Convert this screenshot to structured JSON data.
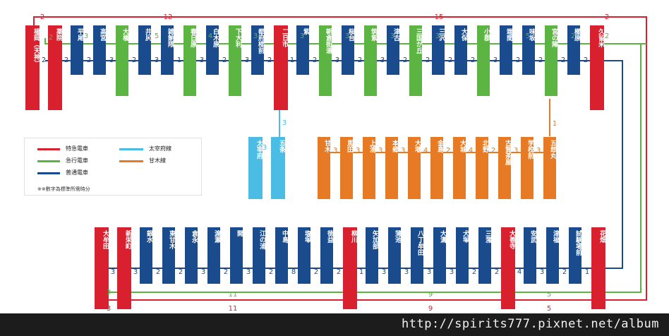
{
  "colors": {
    "limited_express": "#d8202f",
    "express": "#5cb543",
    "local": "#1a4b8c",
    "dazaifu_line": "#4bbde4",
    "amagi_line": "#e77a25"
  },
  "legend": {
    "limited_express": "特急電車",
    "express": "急行電車",
    "local": "普通電車",
    "dazaifu_line": "太宰府線",
    "amagi_line": "甘木線",
    "note": "※※數字為標準所需時分"
  },
  "top_row": {
    "stations": [
      {
        "name": "福岡（天神）",
        "type": "ltd"
      },
      {
        "name": "薬院",
        "type": "ltd"
      },
      {
        "name": "平尾",
        "type": "loc"
      },
      {
        "name": "高宮",
        "type": "loc"
      },
      {
        "name": "大橋",
        "type": "exp"
      },
      {
        "name": "井尻",
        "type": "loc"
      },
      {
        "name": "雑餉隈",
        "type": "loc"
      },
      {
        "name": "春日原",
        "type": "exp"
      },
      {
        "name": "白木原",
        "type": "loc"
      },
      {
        "name": "下大利",
        "type": "exp"
      },
      {
        "name": "都府楼前",
        "type": "loc"
      },
      {
        "name": "二日市",
        "type": "ltd"
      },
      {
        "name": "紫",
        "type": "loc"
      },
      {
        "name": "朝倉街道",
        "type": "exp"
      },
      {
        "name": "桜台",
        "type": "loc"
      },
      {
        "name": "筑紫",
        "type": "exp"
      },
      {
        "name": "津古",
        "type": "loc"
      },
      {
        "name": "三国が丘",
        "type": "exp"
      },
      {
        "name": "三沢",
        "type": "loc"
      },
      {
        "name": "大保",
        "type": "loc"
      },
      {
        "name": "小郡",
        "type": "exp"
      },
      {
        "name": "端間",
        "type": "loc"
      },
      {
        "name": "味坂",
        "type": "loc"
      },
      {
        "name": "宮の陣",
        "type": "exp"
      },
      {
        "name": "櫛原",
        "type": "loc"
      },
      {
        "name": "久留米",
        "type": "ltd"
      }
    ],
    "local_times": [
      "2",
      "2",
      "2",
      "3",
      "2",
      "3",
      "1",
      "3",
      "2",
      "3",
      "2",
      "1",
      "2",
      "3",
      "2",
      "3",
      "2",
      "2",
      "2",
      "2",
      "3",
      "2",
      "2",
      "2",
      "2"
    ]
  },
  "top_express": {
    "times": [
      "2",
      "3",
      "5",
      "4",
      "3",
      "3",
      "3",
      "3",
      "3",
      "3",
      "5",
      "2",
      "2"
    ]
  },
  "top_limited": {
    "times": [
      "2",
      "12",
      "15",
      "2"
    ]
  },
  "dazaifu": {
    "stations": [
      {
        "name": "太宰府"
      },
      {
        "name": "五条"
      }
    ],
    "times": [
      "3",
      "3"
    ]
  },
  "amagi": {
    "stations": [
      {
        "name": "甘木"
      },
      {
        "name": "馬田"
      },
      {
        "name": "上浦"
      },
      {
        "name": "本郷"
      },
      {
        "name": "大堰"
      },
      {
        "name": "金島"
      },
      {
        "name": "大城"
      },
      {
        "name": "北野"
      },
      {
        "name": "古賀茶屋"
      },
      {
        "name": "学校前"
      },
      {
        "name": "五郎丸"
      }
    ],
    "times": [
      "3",
      "3",
      "3",
      "3",
      "4",
      "2",
      "4",
      "2",
      "3",
      "3",
      "1"
    ]
  },
  "bottom_row": {
    "stations": [
      {
        "name": "大牟田",
        "type": "ltd"
      },
      {
        "name": "新栄町",
        "type": "ltd"
      },
      {
        "name": "銀水",
        "type": "loc"
      },
      {
        "name": "東甘木",
        "type": "loc"
      },
      {
        "name": "倉永",
        "type": "loc"
      },
      {
        "name": "渡瀬",
        "type": "loc"
      },
      {
        "name": "開",
        "type": "loc"
      },
      {
        "name": "江の浦",
        "type": "loc"
      },
      {
        "name": "中島",
        "type": "loc"
      },
      {
        "name": "塩塚",
        "type": "loc"
      },
      {
        "name": "徳益",
        "type": "loc"
      },
      {
        "name": "柳川",
        "type": "ltd"
      },
      {
        "name": "矢加部",
        "type": "loc"
      },
      {
        "name": "蒲池",
        "type": "loc"
      },
      {
        "name": "八丁牟田",
        "type": "loc"
      },
      {
        "name": "大溝",
        "type": "loc"
      },
      {
        "name": "犬塚",
        "type": "loc"
      },
      {
        "name": "三潴",
        "type": "loc"
      },
      {
        "name": "大善寺",
        "type": "ltd"
      },
      {
        "name": "安武",
        "type": "loc"
      },
      {
        "name": "津福",
        "type": "loc"
      },
      {
        "name": "試験場前",
        "type": "loc"
      },
      {
        "name": "花畑",
        "type": "ltd"
      }
    ],
    "local_times": [
      "3",
      "3",
      "2",
      "2",
      "3",
      "2",
      "3",
      "2",
      "8",
      "2",
      "2",
      "1",
      "3",
      "3",
      "3",
      "3",
      "2",
      "2",
      "4",
      "3",
      "2",
      "1"
    ]
  },
  "bottom_express": {
    "times": [
      "3",
      "11",
      "9",
      "5"
    ]
  },
  "bottom_limited": {
    "times": [
      "3",
      "11",
      "9",
      "5"
    ]
  },
  "footer": {
    "watermark": "http://spirits777.pixnet.net/album"
  }
}
